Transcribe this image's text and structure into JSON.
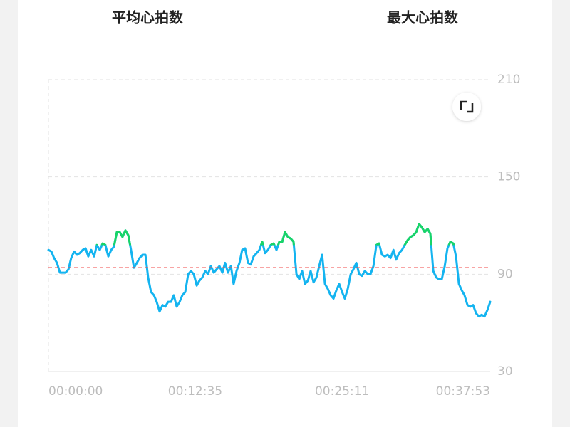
{
  "header": {
    "tabs": [
      "平均心拍数",
      "最大心拍数"
    ]
  },
  "chart_data": {
    "type": "line",
    "x": [
      0,
      15,
      29,
      44,
      59,
      73,
      88,
      103,
      117,
      132,
      147,
      161,
      176,
      191,
      205,
      220,
      235,
      249,
      264,
      279,
      293,
      308,
      323,
      337,
      352,
      367,
      381,
      396,
      411,
      425,
      440,
      455,
      469,
      484,
      499,
      513,
      528,
      543,
      557,
      572,
      587,
      601,
      616,
      631,
      645,
      660,
      675,
      689,
      704,
      719,
      733,
      748,
      763,
      777,
      792,
      807,
      821,
      836,
      851,
      865,
      880,
      895,
      909,
      924,
      939,
      953,
      968,
      983,
      997,
      1012,
      1027,
      1041,
      1056,
      1071,
      1085,
      1100,
      1115,
      1129,
      1144,
      1159,
      1173,
      1188,
      1203,
      1217,
      1232,
      1247,
      1261,
      1276,
      1291,
      1305,
      1320,
      1335,
      1349,
      1364,
      1379,
      1393,
      1408,
      1423,
      1437,
      1452,
      1467,
      1481,
      1496,
      1511,
      1525,
      1540,
      1555,
      1569,
      1584,
      1599,
      1613,
      1628,
      1643,
      1657,
      1672,
      1687,
      1701,
      1716,
      1731,
      1745,
      1760,
      1775,
      1789,
      1804,
      1819,
      1833,
      1848,
      1863,
      1877,
      1892,
      1907,
      1921,
      1936,
      1951,
      1965,
      1980,
      1995,
      2009,
      2024,
      2039,
      2053,
      2068,
      2083,
      2097,
      2112,
      2127,
      2141,
      2156,
      2171,
      2185,
      2200,
      2215,
      2229,
      2244,
      2259,
      2273
    ],
    "series": [
      {
        "color": "#14b4f0",
        "values": [
          105,
          104,
          100,
          97,
          91,
          91,
          91,
          93,
          100,
          104,
          102,
          103,
          105,
          106,
          101,
          105,
          101,
          108,
          105,
          109,
          108,
          101,
          105,
          107,
          116,
          116,
          113,
          117,
          114,
          105,
          94,
          97,
          100,
          102,
          102,
          88,
          79,
          77,
          73,
          67,
          71,
          70,
          73,
          73,
          77,
          70,
          73,
          77,
          79,
          90,
          92,
          90,
          83,
          86,
          88,
          92,
          90,
          95,
          91,
          93,
          95,
          91,
          97,
          91,
          95,
          84,
          92,
          97,
          105,
          106,
          97,
          96,
          101,
          103,
          105,
          110,
          103,
          105,
          108,
          109,
          105,
          110,
          110,
          116,
          113,
          112,
          110,
          90,
          87,
          92,
          84,
          86,
          92,
          85,
          88,
          95,
          102,
          84,
          81,
          77,
          75,
          80,
          84,
          79,
          75,
          81,
          90,
          93,
          97,
          90,
          89,
          92,
          90,
          90,
          95,
          108,
          109,
          102,
          101,
          102,
          100,
          105,
          99,
          103,
          105,
          108,
          111,
          113,
          114,
          116,
          121,
          119,
          116,
          118,
          115,
          92,
          88,
          87,
          87,
          95,
          106,
          110,
          109,
          101,
          84,
          80,
          77,
          71,
          70,
          71,
          66,
          64,
          65,
          64,
          68,
          73
        ]
      }
    ],
    "high_zone_min": 108,
    "high_zone_color": "#19d468",
    "average_line": 94,
    "average_line_color": "#f04848",
    "xlim": [
      0,
      2273
    ],
    "xticks": [
      {
        "value": 0,
        "label": "00:00:00"
      },
      {
        "value": 755,
        "label": "00:12:35"
      },
      {
        "value": 1511,
        "label": "00:25:11"
      },
      {
        "value": 2273,
        "label": "00:37:53"
      }
    ],
    "ylim": [
      30,
      210
    ],
    "yticks": [
      30,
      90,
      150,
      210
    ],
    "grid": true
  }
}
